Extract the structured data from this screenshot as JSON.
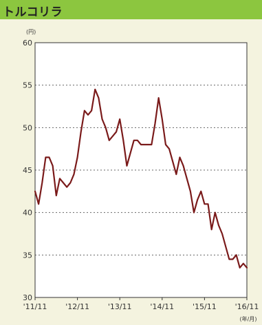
{
  "header": {
    "title": "トルコリラ"
  },
  "chart_data": {
    "type": "line",
    "title": "トルコリラ",
    "y_unit": "(円)",
    "x_unit": "(年/月)",
    "ylim": [
      30,
      60
    ],
    "y_ticks": [
      30,
      35,
      40,
      45,
      50,
      55,
      60
    ],
    "x_ticks": [
      "'11/11",
      "'12/11",
      "'13/11",
      "'14/11",
      "'15/11",
      "'16/11"
    ],
    "xlim": [
      0,
      60
    ],
    "grid": "horizontal dotted",
    "line_color": "#7a1a1a",
    "series": [
      {
        "x": [
          0,
          1,
          2,
          3,
          4,
          5,
          6,
          7,
          8,
          9,
          10,
          11,
          12,
          13,
          14,
          15,
          16,
          17,
          18,
          19,
          20,
          21,
          22,
          23,
          24,
          25,
          26,
          27,
          28,
          29,
          30,
          31,
          32,
          33,
          34,
          35,
          36,
          37,
          38,
          39,
          40,
          41,
          42,
          43,
          44,
          45,
          46,
          47,
          48,
          49,
          50,
          51,
          52,
          53,
          54,
          55,
          56,
          57,
          58,
          59,
          60
        ],
        "values": [
          42.5,
          41.0,
          43.5,
          46.5,
          46.5,
          45.5,
          42.0,
          44.0,
          43.5,
          43.0,
          43.5,
          44.5,
          46.5,
          49.5,
          52.0,
          51.5,
          52.0,
          54.5,
          53.5,
          51.0,
          50.0,
          48.5,
          49.0,
          49.5,
          51.0,
          48.5,
          45.5,
          47.0,
          48.5,
          48.5,
          48.0,
          48.0,
          48.0,
          48.0,
          50.5,
          53.5,
          51.0,
          48.0,
          47.5,
          46.0,
          44.5,
          46.5,
          45.5,
          44.0,
          42.5,
          40.0,
          41.5,
          42.5,
          41.0,
          41.0,
          38.0,
          40.0,
          38.5,
          37.5,
          36.0,
          34.5,
          34.5,
          35.0,
          33.5,
          34.0,
          33.5
        ]
      }
    ]
  }
}
